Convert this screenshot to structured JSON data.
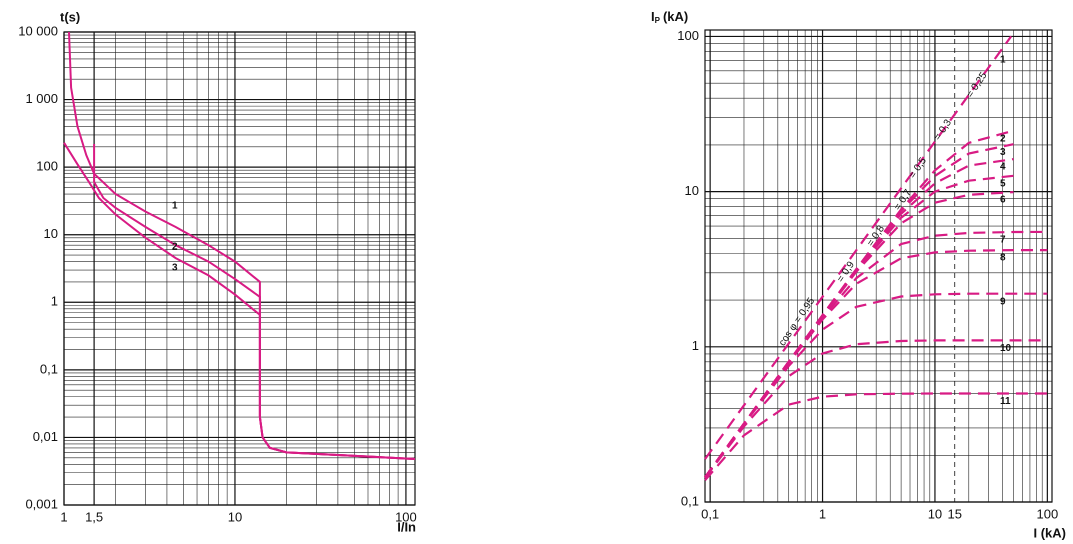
{
  "chart_data": [
    {
      "type": "line",
      "y_label": "t(s)",
      "x_label": "I/In",
      "log_x": true,
      "log_y": true,
      "grid": true,
      "minor_grid": true,
      "color": "#d81b84",
      "xlim": [
        1,
        113
      ],
      "ylim": [
        0.001,
        10000
      ],
      "xticks": [
        1,
        {
          "value": 1.5,
          "label": "1,5"
        },
        10,
        100
      ],
      "yticks": [
        {
          "value": 10000,
          "label": "10 000"
        },
        {
          "value": 1000,
          "label": "1 000"
        },
        100,
        10,
        1,
        {
          "value": 0.1,
          "label": "0,1"
        },
        {
          "value": 0.01,
          "label": "0,01"
        },
        {
          "value": 0.001,
          "label": "0,001"
        }
      ],
      "series": [
        {
          "name": "1",
          "x": [
            1.07,
            1.1,
            1.2,
            1.35,
            1.5,
            2,
            3,
            4.5,
            7,
            10,
            14,
            14,
            14.5,
            16,
            20,
            40,
            113
          ],
          "values": [
            10000,
            1500,
            400,
            150,
            80,
            40,
            22,
            13,
            7,
            4,
            2,
            0.02,
            0.01,
            0.007,
            0.006,
            0.0055,
            0.0048
          ]
        },
        {
          "name": "2",
          "x": [
            1.5,
            1.5,
            1.7,
            2,
            3,
            4.5,
            7,
            10,
            14,
            14,
            14.5,
            16,
            20,
            40,
            113
          ],
          "values": [
            220,
            60,
            35,
            25,
            13,
            7,
            4,
            2.2,
            1.2,
            0.02,
            0.01,
            0.007,
            0.006,
            0.0055,
            0.0048
          ]
        },
        {
          "name": "3",
          "x": [
            1,
            1.2,
            1.4,
            1.6,
            2,
            3,
            4.5,
            7,
            10,
            14,
            14,
            14.5,
            16,
            20,
            40,
            113
          ],
          "values": [
            230,
            110,
            60,
            35,
            20,
            9,
            4.5,
            2.5,
            1.3,
            0.65,
            0.02,
            0.01,
            0.007,
            0.006,
            0.0055,
            0.0048
          ]
        }
      ]
    },
    {
      "type": "line",
      "y_label": "I",
      "y_label_sub": "P",
      "y_label_unit": "(kA)",
      "x_label": "I (kA)",
      "log_x": true,
      "log_y": true,
      "grid": true,
      "minor_grid": true,
      "color": "#d81b84",
      "dashed": true,
      "xlim": [
        0.09,
        110
      ],
      "ylim": [
        0.1,
        110
      ],
      "xticks": [
        {
          "value": 0.1,
          "label": "0,1"
        },
        1,
        10,
        15,
        100
      ],
      "yticks": [
        100,
        10,
        1,
        {
          "value": 0.1,
          "label": "0,1"
        }
      ],
      "annotations": [
        "cos φ = 0,95",
        "= 0,9",
        "= 0,8",
        "= 0,7",
        "= 0,5",
        "= 0,3",
        "= 0,25"
      ],
      "series": [
        {
          "name": "1",
          "x": [
            0.09,
            0.2,
            0.5,
            1,
            2,
            5,
            10,
            20,
            47.6
          ],
          "values": [
            0.189,
            0.42,
            1.05,
            2.1,
            4.2,
            10.5,
            21,
            42,
            100
          ]
        },
        {
          "name": "2",
          "x": [
            0.09,
            0.2,
            0.5,
            1,
            2,
            5,
            10,
            20,
            50
          ],
          "values": [
            0.144,
            0.32,
            0.8,
            1.6,
            3.17,
            7.67,
            13.7,
            20.6,
            24.7
          ]
        },
        {
          "name": "3",
          "x": [
            0.09,
            0.2,
            0.5,
            1,
            2,
            5,
            10,
            20,
            50
          ],
          "values": [
            0.144,
            0.32,
            0.8,
            1.59,
            3.16,
            7.5,
            12.6,
            17.6,
            20.2
          ]
        },
        {
          "name": "4",
          "x": [
            0.09,
            0.2,
            0.5,
            1,
            2,
            5,
            10,
            20,
            50
          ],
          "values": [
            0.144,
            0.32,
            0.8,
            1.59,
            3.14,
            7.2,
            11.3,
            14.7,
            16.2
          ]
        },
        {
          "name": "5",
          "x": [
            0.09,
            0.2,
            0.5,
            1,
            2,
            5,
            10,
            20,
            50
          ],
          "values": [
            0.144,
            0.32,
            0.798,
            1.59,
            3.12,
            6.78,
            10,
            11.75,
            12.64
          ]
        },
        {
          "name": "6",
          "x": [
            0.09,
            0.2,
            0.5,
            1,
            2,
            5,
            10,
            20,
            50
          ],
          "values": [
            0.144,
            0.32,
            0.797,
            1.58,
            3.05,
            6.25,
            8.48,
            9.54,
            9.93
          ]
        },
        {
          "name": "7",
          "x": [
            0.09,
            0.2,
            0.5,
            1,
            2,
            5,
            10,
            20,
            50,
            100
          ],
          "values": [
            0.144,
            0.32,
            0.792,
            1.54,
            2.77,
            4.6,
            5.2,
            5.42,
            5.49,
            5.5
          ]
        },
        {
          "name": "8",
          "x": [
            0.09,
            0.2,
            0.5,
            1,
            2,
            5,
            10,
            20,
            50,
            100
          ],
          "values": [
            0.144,
            0.32,
            0.786,
            1.5,
            2.55,
            3.72,
            4.06,
            4.16,
            4.2,
            4.2
          ]
        },
        {
          "name": "9",
          "x": [
            0.09,
            0.2,
            0.5,
            1,
            2,
            5,
            10,
            20,
            50,
            100
          ],
          "values": [
            0.144,
            0.317,
            0.752,
            1.29,
            1.81,
            2.11,
            2.18,
            2.2,
            2.2,
            2.2
          ]
        },
        {
          "name": "10",
          "x": [
            0.09,
            0.2,
            0.5,
            1,
            2,
            5,
            10,
            20,
            50,
            100
          ],
          "values": [
            0.143,
            0.307,
            0.647,
            0.906,
            1.04,
            1.09,
            1.1,
            1.1,
            1.1,
            1.1
          ]
        },
        {
          "name": "11",
          "x": [
            0.09,
            0.2,
            0.5,
            1,
            2,
            5,
            10,
            20,
            50,
            100
          ],
          "values": [
            0.138,
            0.269,
            0.424,
            0.477,
            0.494,
            0.499,
            0.5,
            0.5,
            0.5,
            0.5
          ]
        }
      ]
    }
  ]
}
